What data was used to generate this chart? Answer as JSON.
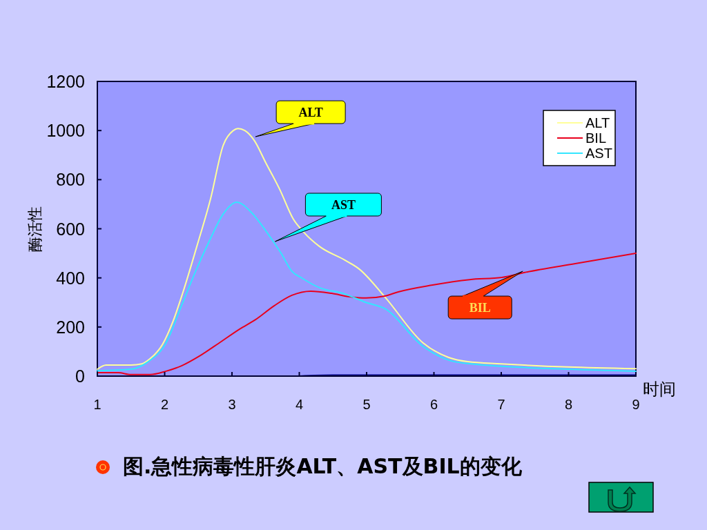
{
  "chart_data": {
    "type": "line",
    "title": "图.急性病毒性肝炎ALT、AST及BIL的变化",
    "xlabel": "时间",
    "ylabel": "酶活性",
    "xlim": [
      1,
      9
    ],
    "ylim": [
      0,
      1200
    ],
    "xticks": [
      1,
      2,
      3,
      4,
      5,
      6,
      7,
      8,
      9
    ],
    "yticks": [
      0,
      200,
      400,
      600,
      800,
      1000,
      1200
    ],
    "grid": false,
    "legend": "top right",
    "marker": "none",
    "line_style": "solid",
    "annotations": [
      {
        "text": "ALT",
        "x": 3.35,
        "y": 975
      },
      {
        "text": "AST",
        "x": 3.64,
        "y": 548
      },
      {
        "text": "BIL",
        "x": 7.32,
        "y": 427
      }
    ],
    "series": [
      {
        "name": "ALT",
        "color": "#ffff99",
        "x": [
          1,
          1.13,
          1.5,
          1.66,
          1.78,
          1.97,
          2.12,
          2.27,
          2.48,
          2.68,
          2.87,
          3.02,
          3.09,
          3.19,
          3.33,
          3.5,
          3.71,
          3.91,
          4.07,
          4.3,
          4.68,
          4.89,
          5.27,
          5.84,
          6.22,
          6.5,
          7,
          8,
          9
        ],
        "values": [
          28,
          45,
          45,
          50,
          70,
          130,
          220,
          340,
          530,
          720,
          940,
          1000,
          1008,
          1000,
          960,
          870,
          760,
          640,
          585,
          528,
          472,
          436,
          323,
          135,
          76,
          59,
          50,
          37,
          30
        ]
      },
      {
        "name": "BIL",
        "color": "#e8001c",
        "x": [
          1,
          1.31,
          1.5,
          1.78,
          2.02,
          2.25,
          2.53,
          2.81,
          3.11,
          3.35,
          3.63,
          3.89,
          4.17,
          4.48,
          4.75,
          4.99,
          5.27,
          5.47,
          5.98,
          6.53,
          7.01,
          7.35,
          8.1,
          9
        ],
        "values": [
          14,
          14,
          6,
          6,
          20,
          42,
          84,
          135,
          191,
          230,
          287,
          329,
          346,
          337,
          323,
          318,
          326,
          343,
          371,
          393,
          402,
          422,
          458,
          500
        ]
      },
      {
        "name": "AST",
        "color": "#33e6ff",
        "x": [
          1,
          1.5,
          1.74,
          2.02,
          2.25,
          2.46,
          2.66,
          2.87,
          3.07,
          3.28,
          3.52,
          3.73,
          3.89,
          4.04,
          4.3,
          4.65,
          4.99,
          5.27,
          5.84,
          6.22,
          6.5,
          8,
          9
        ],
        "values": [
          22,
          28,
          56,
          135,
          287,
          427,
          548,
          660,
          708,
          669,
          585,
          500,
          427,
          399,
          360,
          337,
          300,
          275,
          121,
          65,
          51,
          28,
          20
        ]
      },
      {
        "color": "#000080",
        "x": [
          4,
          4.5,
          9
        ],
        "values": [
          0,
          4,
          4
        ]
      }
    ]
  }
}
